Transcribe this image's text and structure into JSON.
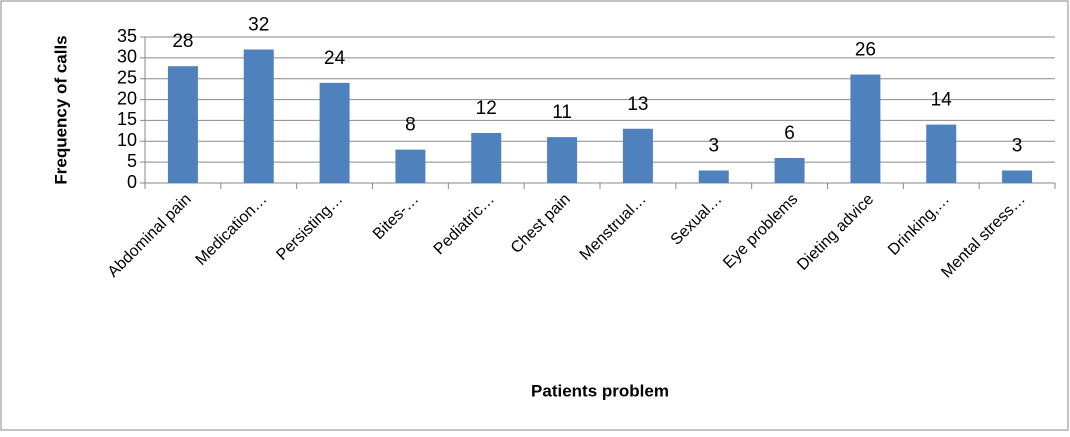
{
  "chart_data": {
    "type": "bar",
    "categories": [
      "Abdominal pain",
      "Medication…",
      "Persisting…",
      "Bites-…",
      "Pediatric…",
      "Chest pain",
      "Menstrual…",
      "Sexual…",
      "Eye problems",
      "Dieting advice",
      "Drinking,…",
      "Mental stress…"
    ],
    "values": [
      28,
      32,
      24,
      8,
      12,
      11,
      13,
      3,
      6,
      26,
      14,
      3
    ],
    "color": "#4f81bd",
    "x_label": "Patients problem",
    "y_label": "Frequency of calls",
    "ylim": [
      0,
      35
    ],
    "yticks": [
      0,
      5,
      10,
      15,
      20,
      25,
      30,
      35
    ],
    "grid": true
  }
}
